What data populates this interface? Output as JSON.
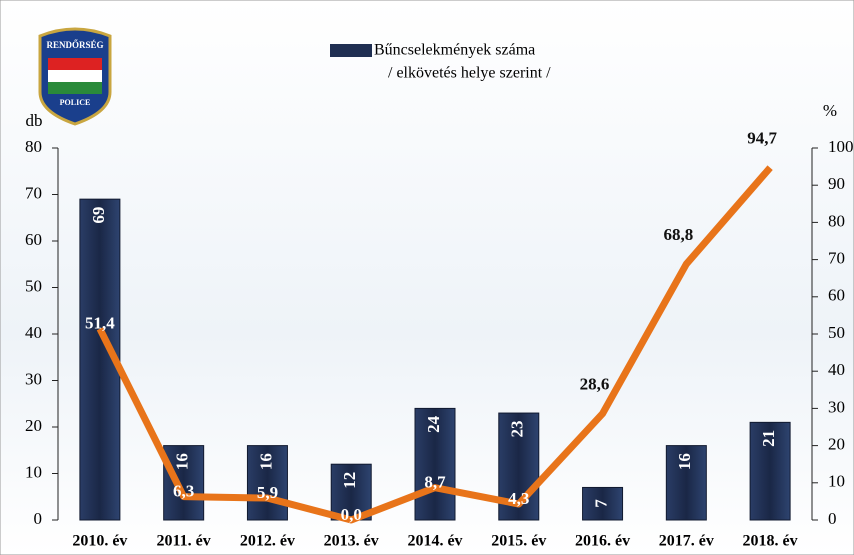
{
  "logo": {
    "top_text": "RENDŐRSÉG",
    "bottom_text": "POLICE"
  },
  "chart_data": {
    "type": "bar",
    "subtitle": "/ elkövetés helye szerint /",
    "y_label": "db",
    "y2_label": "%",
    "categories": [
      "2010. év",
      "2011. év",
      "2012. év",
      "2013. év",
      "2014. év",
      "2015. év",
      "2016. év",
      "2017. év",
      "2018. év"
    ],
    "series": [
      {
        "name": "Bűncselekmények száma",
        "type": "bar",
        "color": "#1f2f52",
        "values": [
          69,
          16,
          16,
          12,
          24,
          23,
          7,
          16,
          21
        ]
      },
      {
        "type": "line",
        "axis": "y2",
        "color": "#e8741a",
        "values": [
          51.4,
          6.3,
          5.9,
          0.0,
          8.7,
          4.3,
          28.6,
          68.8,
          94.7
        ],
        "value_labels": [
          "51,4",
          "6,3",
          "5,9",
          "0,0",
          "8,7",
          "4,3",
          "28,6",
          "68,8",
          "94,7"
        ]
      }
    ],
    "ylim": [
      0,
      80
    ],
    "yticks": [
      0,
      10,
      20,
      30,
      40,
      50,
      60,
      70,
      80
    ],
    "y2lim": [
      0,
      100
    ],
    "y2ticks": [
      0,
      10,
      20,
      30,
      40,
      50,
      60,
      70,
      80,
      90,
      100
    ],
    "legend": "top"
  }
}
